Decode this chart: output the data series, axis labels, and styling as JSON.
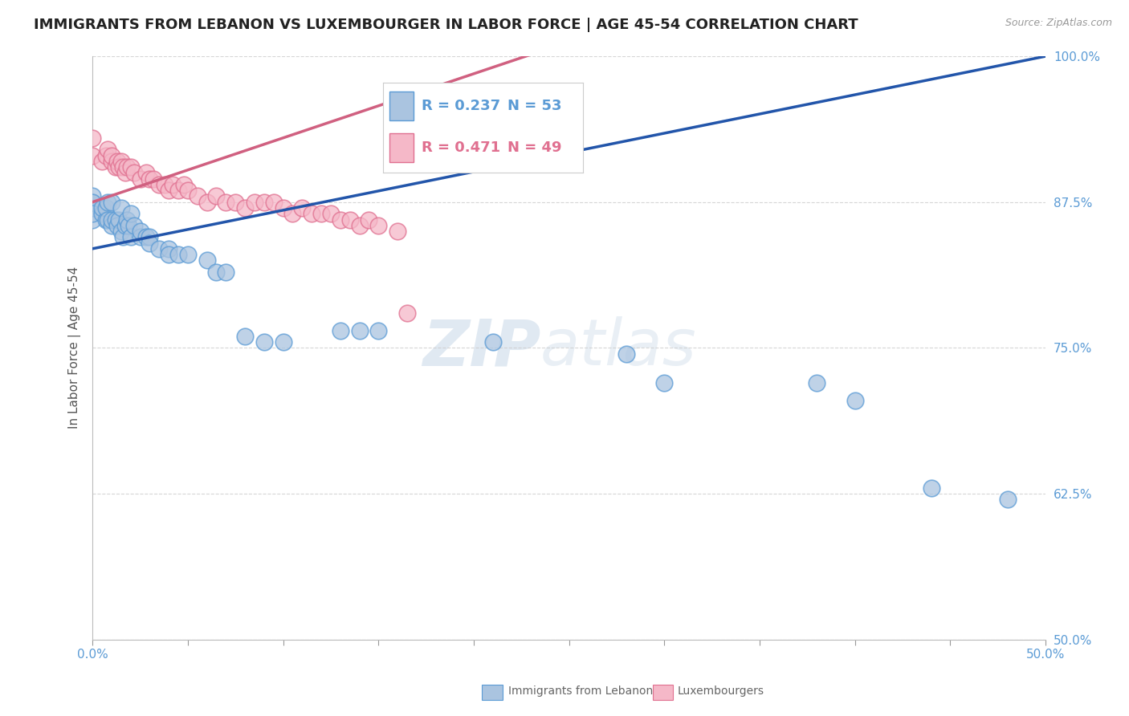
{
  "title": "IMMIGRANTS FROM LEBANON VS LUXEMBOURGER IN LABOR FORCE | AGE 45-54 CORRELATION CHART",
  "source": "Source: ZipAtlas.com",
  "ylabel": "In Labor Force | Age 45-54",
  "xlim": [
    0.0,
    0.5
  ],
  "ylim": [
    0.5,
    1.0
  ],
  "xtick_positions": [
    0.0,
    0.05,
    0.1,
    0.15,
    0.2,
    0.25,
    0.3,
    0.35,
    0.4,
    0.45,
    0.5
  ],
  "xticklabels": [
    "0.0%",
    "",
    "",
    "",
    "",
    "",
    "",
    "",
    "",
    "",
    "50.0%"
  ],
  "ytick_positions": [
    0.5,
    0.625,
    0.75,
    0.875,
    1.0
  ],
  "yticklabels": [
    "50.0%",
    "62.5%",
    "75.0%",
    "87.5%",
    "100.0%"
  ],
  "legend_blue_label": "Immigrants from Lebanon",
  "legend_pink_label": "Luxembourgers",
  "R_blue": 0.237,
  "N_blue": 53,
  "R_pink": 0.471,
  "N_pink": 49,
  "blue_color": "#aac4e0",
  "blue_edge_color": "#5b9bd5",
  "pink_color": "#f5b8c8",
  "pink_edge_color": "#e07090",
  "blue_line_color": "#2255aa",
  "pink_line_color": "#d06080",
  "watermark_color": "#cdd8e8",
  "background_color": "#ffffff",
  "title_fontsize": 13,
  "axis_label_fontsize": 11,
  "tick_fontsize": 11,
  "blue_line_intercept": 0.835,
  "blue_line_slope": 0.33,
  "pink_line_intercept": 0.875,
  "pink_line_slope": 0.55,
  "blue_scatter_x": [
    0.0,
    0.0,
    0.0,
    0.0,
    0.0,
    0.0,
    0.005,
    0.005,
    0.007,
    0.007,
    0.008,
    0.008,
    0.01,
    0.01,
    0.01,
    0.012,
    0.013,
    0.014,
    0.015,
    0.015,
    0.016,
    0.017,
    0.018,
    0.019,
    0.02,
    0.02,
    0.022,
    0.025,
    0.025,
    0.028,
    0.03,
    0.03,
    0.035,
    0.04,
    0.04,
    0.045,
    0.05,
    0.06,
    0.065,
    0.07,
    0.08,
    0.09,
    0.1,
    0.13,
    0.14,
    0.15,
    0.21,
    0.28,
    0.3,
    0.38,
    0.4,
    0.44,
    0.48
  ],
  "blue_scatter_y": [
    0.86,
    0.87,
    0.875,
    0.88,
    0.875,
    0.865,
    0.865,
    0.87,
    0.86,
    0.87,
    0.86,
    0.875,
    0.855,
    0.86,
    0.875,
    0.86,
    0.855,
    0.86,
    0.87,
    0.85,
    0.845,
    0.855,
    0.86,
    0.855,
    0.845,
    0.865,
    0.855,
    0.845,
    0.85,
    0.845,
    0.845,
    0.84,
    0.835,
    0.835,
    0.83,
    0.83,
    0.83,
    0.825,
    0.815,
    0.815,
    0.76,
    0.755,
    0.755,
    0.765,
    0.765,
    0.765,
    0.755,
    0.745,
    0.72,
    0.72,
    0.705,
    0.63,
    0.62
  ],
  "pink_scatter_x": [
    0.0,
    0.0,
    0.005,
    0.007,
    0.008,
    0.01,
    0.01,
    0.012,
    0.013,
    0.014,
    0.015,
    0.016,
    0.017,
    0.018,
    0.02,
    0.022,
    0.025,
    0.028,
    0.03,
    0.032,
    0.035,
    0.038,
    0.04,
    0.042,
    0.045,
    0.048,
    0.05,
    0.055,
    0.06,
    0.065,
    0.07,
    0.075,
    0.08,
    0.085,
    0.09,
    0.095,
    0.1,
    0.105,
    0.11,
    0.115,
    0.12,
    0.125,
    0.13,
    0.135,
    0.14,
    0.145,
    0.15,
    0.16,
    0.165
  ],
  "pink_scatter_y": [
    0.915,
    0.93,
    0.91,
    0.915,
    0.92,
    0.91,
    0.915,
    0.905,
    0.91,
    0.905,
    0.91,
    0.905,
    0.9,
    0.905,
    0.905,
    0.9,
    0.895,
    0.9,
    0.895,
    0.895,
    0.89,
    0.89,
    0.885,
    0.89,
    0.885,
    0.89,
    0.885,
    0.88,
    0.875,
    0.88,
    0.875,
    0.875,
    0.87,
    0.875,
    0.875,
    0.875,
    0.87,
    0.865,
    0.87,
    0.865,
    0.865,
    0.865,
    0.86,
    0.86,
    0.855,
    0.86,
    0.855,
    0.85,
    0.78
  ]
}
